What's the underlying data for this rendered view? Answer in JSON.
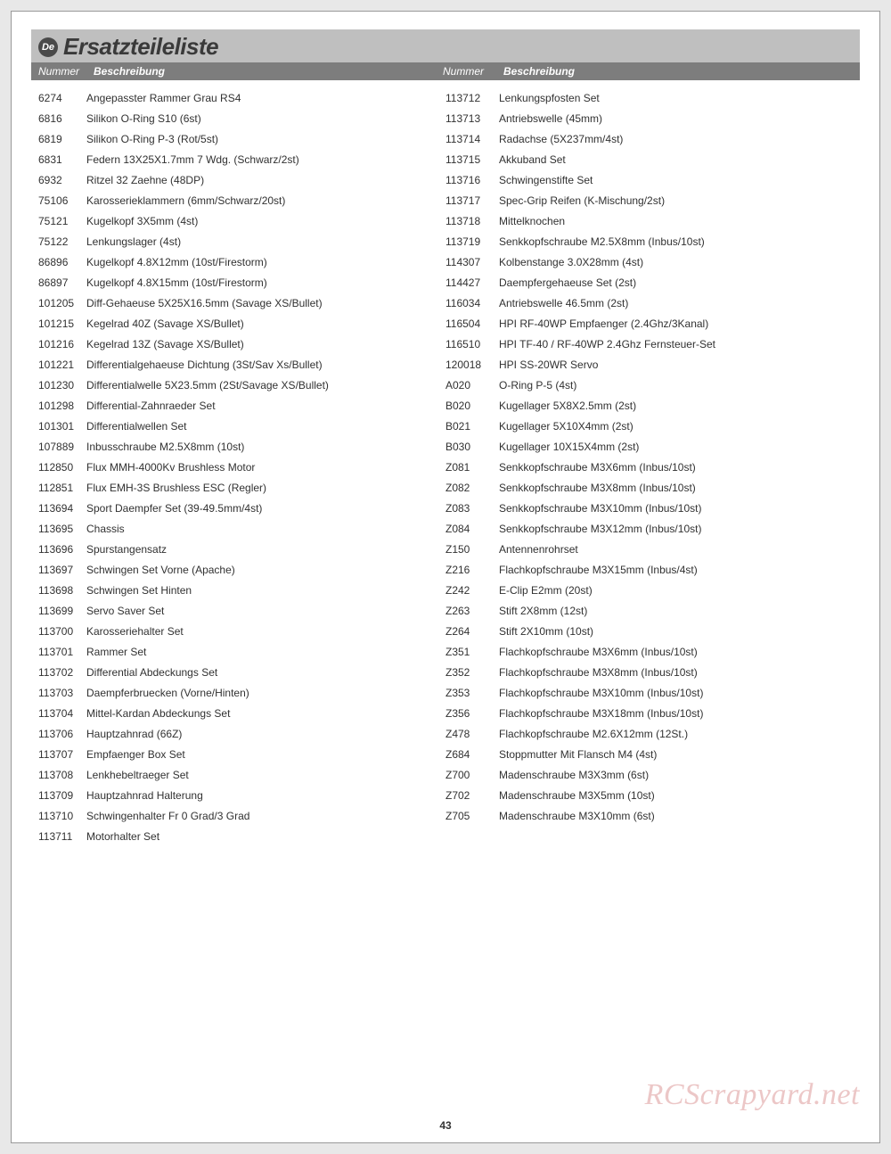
{
  "lang_badge": "De",
  "title": "Ersatzteileliste",
  "headers": {
    "num": "Nummer",
    "desc": "Beschreibung"
  },
  "page_number": "43",
  "watermark": "RCScrapyard.net",
  "colors": {
    "page_bg": "#e8e8e8",
    "title_bar_bg": "#bfbfbf",
    "header_bg": "#7d7d7d",
    "text": "#313131",
    "badge_bg": "#4a4a4a"
  },
  "left_column": [
    {
      "num": "6274",
      "desc": "Angepasster Rammer Grau RS4"
    },
    {
      "num": "6816",
      "desc": "Silikon O-Ring S10 (6st)"
    },
    {
      "num": "6819",
      "desc": "Silikon O-Ring P-3 (Rot/5st)"
    },
    {
      "num": "6831",
      "desc": "Federn 13X25X1.7mm 7 Wdg. (Schwarz/2st)"
    },
    {
      "num": "6932",
      "desc": "Ritzel 32 Zaehne (48DP)"
    },
    {
      "num": "75106",
      "desc": "Karosserieklammern (6mm/Schwarz/20st)"
    },
    {
      "num": "75121",
      "desc": "Kugelkopf 3X5mm (4st)"
    },
    {
      "num": "75122",
      "desc": "Lenkungslager (4st)"
    },
    {
      "num": "86896",
      "desc": "Kugelkopf 4.8X12mm (10st/Firestorm)"
    },
    {
      "num": "86897",
      "desc": "Kugelkopf 4.8X15mm (10st/Firestorm)"
    },
    {
      "num": "101205",
      "desc": "Diff-Gehaeuse 5X25X16.5mm (Savage XS/Bullet)"
    },
    {
      "num": "101215",
      "desc": "Kegelrad 40Z (Savage XS/Bullet)"
    },
    {
      "num": "101216",
      "desc": "Kegelrad 13Z (Savage XS/Bullet)"
    },
    {
      "num": "101221",
      "desc": "Differentialgehaeuse Dichtung (3St/Sav Xs/Bullet)"
    },
    {
      "num": "101230",
      "desc": "Differentialwelle 5X23.5mm (2St/Savage XS/Bullet)"
    },
    {
      "num": "101298",
      "desc": "Differential-Zahnraeder Set"
    },
    {
      "num": "101301",
      "desc": "Differentialwellen Set"
    },
    {
      "num": "107889",
      "desc": "Inbusschraube M2.5X8mm (10st)"
    },
    {
      "num": "112850",
      "desc": "Flux MMH-4000Kv Brushless Motor"
    },
    {
      "num": "112851",
      "desc": "Flux EMH-3S Brushless ESC (Regler)"
    },
    {
      "num": "113694",
      "desc": "Sport Daempfer Set (39-49.5mm/4st)"
    },
    {
      "num": "113695",
      "desc": "Chassis"
    },
    {
      "num": "113696",
      "desc": "Spurstangensatz"
    },
    {
      "num": "113697",
      "desc": "Schwingen Set Vorne (Apache)"
    },
    {
      "num": "113698",
      "desc": "Schwingen Set Hinten"
    },
    {
      "num": "113699",
      "desc": "Servo Saver Set"
    },
    {
      "num": "113700",
      "desc": "Karosseriehalter Set"
    },
    {
      "num": "113701",
      "desc": "Rammer Set"
    },
    {
      "num": "113702",
      "desc": "Differential Abdeckungs Set"
    },
    {
      "num": "113703",
      "desc": "Daempferbruecken (Vorne/Hinten)"
    },
    {
      "num": "113704",
      "desc": "Mittel-Kardan Abdeckungs Set"
    },
    {
      "num": "113706",
      "desc": "Hauptzahnrad (66Z)"
    },
    {
      "num": "113707",
      "desc": "Empfaenger Box Set"
    },
    {
      "num": "113708",
      "desc": "Lenkhebeltraeger Set"
    },
    {
      "num": "113709",
      "desc": "Hauptzahnrad Halterung"
    },
    {
      "num": "113710",
      "desc": "Schwingenhalter Fr 0 Grad/3 Grad"
    },
    {
      "num": "113711",
      "desc": "Motorhalter Set"
    }
  ],
  "right_column": [
    {
      "num": "113712",
      "desc": "Lenkungspfosten Set"
    },
    {
      "num": "113713",
      "desc": "Antriebswelle (45mm)"
    },
    {
      "num": "113714",
      "desc": "Radachse (5X237mm/4st)"
    },
    {
      "num": "113715",
      "desc": "Akkuband Set"
    },
    {
      "num": "113716",
      "desc": "Schwingenstifte Set"
    },
    {
      "num": "113717",
      "desc": "Spec-Grip Reifen (K-Mischung/2st)"
    },
    {
      "num": "113718",
      "desc": "Mittelknochen"
    },
    {
      "num": "113719",
      "desc": "Senkkopfschraube M2.5X8mm (Inbus/10st)"
    },
    {
      "num": "114307",
      "desc": "Kolbenstange 3.0X28mm (4st)"
    },
    {
      "num": "114427",
      "desc": "Daempfergehaeuse Set (2st)"
    },
    {
      "num": "116034",
      "desc": "Antriebswelle 46.5mm (2st)"
    },
    {
      "num": "116504",
      "desc": "HPI RF-40WP Empfaenger (2.4Ghz/3Kanal)"
    },
    {
      "num": "116510",
      "desc": "HPI TF-40 / RF-40WP 2.4Ghz Fernsteuer-Set"
    },
    {
      "num": "120018",
      "desc": "HPI SS-20WR  Servo"
    },
    {
      "num": "A020",
      "desc": "O-Ring P-5 (4st)"
    },
    {
      "num": "B020",
      "desc": "Kugellager 5X8X2.5mm (2st)"
    },
    {
      "num": "B021",
      "desc": "Kugellager 5X10X4mm (2st)"
    },
    {
      "num": "B030",
      "desc": "Kugellager 10X15X4mm (2st)"
    },
    {
      "num": "Z081",
      "desc": "Senkkopfschraube M3X6mm (Inbus/10st)"
    },
    {
      "num": "Z082",
      "desc": "Senkkopfschraube M3X8mm (Inbus/10st)"
    },
    {
      "num": "Z083",
      "desc": "Senkkopfschraube M3X10mm (Inbus/10st)"
    },
    {
      "num": "Z084",
      "desc": "Senkkopfschraube M3X12mm (Inbus/10st)"
    },
    {
      "num": "Z150",
      "desc": "Antennenrohrset"
    },
    {
      "num": "Z216",
      "desc": "Flachkopfschraube M3X15mm (Inbus/4st)"
    },
    {
      "num": "Z242",
      "desc": "E-Clip E2mm (20st)"
    },
    {
      "num": "Z263",
      "desc": "Stift 2X8mm (12st)"
    },
    {
      "num": "Z264",
      "desc": "Stift 2X10mm (10st)"
    },
    {
      "num": "Z351",
      "desc": "Flachkopfschraube M3X6mm (Inbus/10st)"
    },
    {
      "num": "Z352",
      "desc": "Flachkopfschraube M3X8mm (Inbus/10st)"
    },
    {
      "num": "Z353",
      "desc": "Flachkopfschraube M3X10mm (Inbus/10st)"
    },
    {
      "num": "Z356",
      "desc": "Flachkopfschraube M3X18mm (Inbus/10st)"
    },
    {
      "num": "Z478",
      "desc": "Flachkopfschraube M2.6X12mm (12St.)"
    },
    {
      "num": "Z684",
      "desc": "Stoppmutter Mit Flansch M4 (4st)"
    },
    {
      "num": "Z700",
      "desc": "Madenschraube M3X3mm (6st)"
    },
    {
      "num": "Z702",
      "desc": "Madenschraube M3X5mm (10st)"
    },
    {
      "num": "Z705",
      "desc": "Madenschraube M3X10mm (6st)"
    }
  ]
}
